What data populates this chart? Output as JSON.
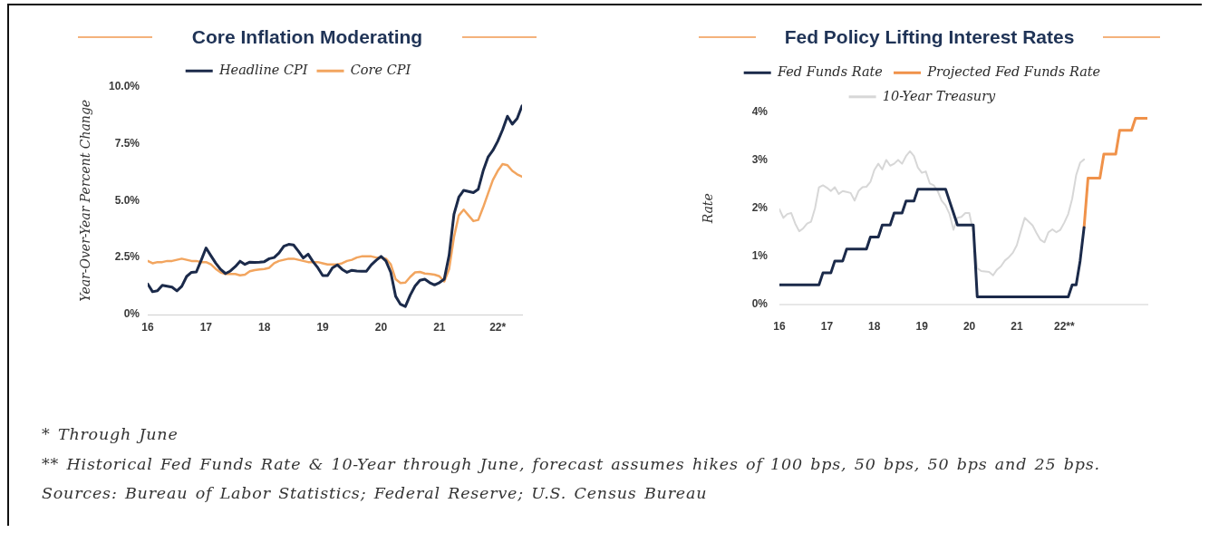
{
  "chart_data": [
    {
      "type": "line",
      "title": "Core Inflation Moderating",
      "ylabel": "Year-Over-Year Percent Change",
      "legend": "top",
      "x": [
        "2016-01",
        "2016-02",
        "2016-03",
        "2016-04",
        "2016-05",
        "2016-06",
        "2016-07",
        "2016-08",
        "2016-09",
        "2016-10",
        "2016-11",
        "2016-12",
        "2017-01",
        "2017-02",
        "2017-03",
        "2017-04",
        "2017-05",
        "2017-06",
        "2017-07",
        "2017-08",
        "2017-09",
        "2017-10",
        "2017-11",
        "2017-12",
        "2018-01",
        "2018-02",
        "2018-03",
        "2018-04",
        "2018-05",
        "2018-06",
        "2018-07",
        "2018-08",
        "2018-09",
        "2018-10",
        "2018-11",
        "2018-12",
        "2019-01",
        "2019-02",
        "2019-03",
        "2019-04",
        "2019-05",
        "2019-06",
        "2019-07",
        "2019-08",
        "2019-09",
        "2019-10",
        "2019-11",
        "2019-12",
        "2020-01",
        "2020-02",
        "2020-03",
        "2020-04",
        "2020-05",
        "2020-06",
        "2020-07",
        "2020-08",
        "2020-09",
        "2020-10",
        "2020-11",
        "2020-12",
        "2021-01",
        "2021-02",
        "2021-03",
        "2021-04",
        "2021-05",
        "2021-06",
        "2021-07",
        "2021-08",
        "2021-09",
        "2021-10",
        "2021-11",
        "2021-12",
        "2022-01",
        "2022-02",
        "2022-03",
        "2022-04",
        "2022-05",
        "2022-06"
      ],
      "series": [
        {
          "name": "Headline CPI",
          "color": "#1b2a4a",
          "values": [
            1.34,
            1.0,
            1.04,
            1.28,
            1.24,
            1.2,
            1.04,
            1.24,
            1.67,
            1.85,
            1.87,
            2.38,
            2.92,
            2.58,
            2.25,
            1.98,
            1.8,
            1.91,
            2.1,
            2.34,
            2.2,
            2.3,
            2.29,
            2.3,
            2.32,
            2.45,
            2.5,
            2.7,
            3.0,
            3.08,
            3.05,
            2.78,
            2.48,
            2.65,
            2.32,
            2.05,
            1.71,
            1.71,
            2.05,
            2.18,
            1.98,
            1.85,
            1.94,
            1.91,
            1.9,
            1.9,
            2.18,
            2.38,
            2.55,
            2.35,
            1.85,
            0.8,
            0.45,
            0.35,
            0.85,
            1.25,
            1.5,
            1.55,
            1.4,
            1.3,
            1.4,
            1.55,
            2.6,
            4.4,
            5.15,
            5.45,
            5.4,
            5.35,
            5.5,
            6.3,
            6.9,
            7.2,
            7.6,
            8.1,
            8.7,
            8.35,
            8.6,
            9.15
          ]
        },
        {
          "name": "Core CPI",
          "color": "#f2a55f",
          "values": [
            2.35,
            2.25,
            2.3,
            2.3,
            2.35,
            2.35,
            2.4,
            2.45,
            2.4,
            2.35,
            2.35,
            2.3,
            2.3,
            2.2,
            2.0,
            1.85,
            1.78,
            1.78,
            1.78,
            1.72,
            1.75,
            1.9,
            1.95,
            1.98,
            2.0,
            2.05,
            2.25,
            2.35,
            2.4,
            2.45,
            2.45,
            2.4,
            2.35,
            2.3,
            2.3,
            2.3,
            2.25,
            2.2,
            2.2,
            2.2,
            2.25,
            2.35,
            2.4,
            2.5,
            2.55,
            2.55,
            2.55,
            2.5,
            2.5,
            2.45,
            2.2,
            1.55,
            1.38,
            1.4,
            1.65,
            1.85,
            1.87,
            1.8,
            1.78,
            1.75,
            1.68,
            1.45,
            2.0,
            3.4,
            4.35,
            4.6,
            4.35,
            4.1,
            4.15,
            4.7,
            5.3,
            5.9,
            6.3,
            6.6,
            6.55,
            6.3,
            6.15,
            6.05
          ]
        }
      ],
      "xlim": [
        "2016-01",
        "2022-06"
      ],
      "xticks": [
        {
          "value": "2016-01",
          "label": "16"
        },
        {
          "value": "2017-01",
          "label": "17"
        },
        {
          "value": "2018-01",
          "label": "18"
        },
        {
          "value": "2019-01",
          "label": "19"
        },
        {
          "value": "2020-01",
          "label": "20"
        },
        {
          "value": "2021-01",
          "label": "21"
        },
        {
          "value": "2022-01",
          "label": "22*"
        }
      ],
      "ylim": [
        0,
        10
      ],
      "yticks": [
        {
          "value": 0,
          "label": "0%"
        },
        {
          "value": 2.5,
          "label": "2.5%"
        },
        {
          "value": 5,
          "label": "5.0%"
        },
        {
          "value": 7.5,
          "label": "7.5%"
        },
        {
          "value": 10,
          "label": "10.0%"
        }
      ],
      "annotations": [
        "* Through June"
      ]
    },
    {
      "type": "line",
      "title": "Fed Policy Lifting Interest Rates",
      "ylabel": "Rate",
      "legend": "top",
      "x": [
        "2016-01",
        "2016-02",
        "2016-03",
        "2016-04",
        "2016-05",
        "2016-06",
        "2016-07",
        "2016-08",
        "2016-09",
        "2016-10",
        "2016-11",
        "2016-12",
        "2017-01",
        "2017-02",
        "2017-03",
        "2017-04",
        "2017-05",
        "2017-06",
        "2017-07",
        "2017-08",
        "2017-09",
        "2017-10",
        "2017-11",
        "2017-12",
        "2018-01",
        "2018-02",
        "2018-03",
        "2018-04",
        "2018-05",
        "2018-06",
        "2018-07",
        "2018-08",
        "2018-09",
        "2018-10",
        "2018-11",
        "2018-12",
        "2019-01",
        "2019-02",
        "2019-03",
        "2019-04",
        "2019-05",
        "2019-06",
        "2019-07",
        "2019-08",
        "2019-09",
        "2019-10",
        "2019-11",
        "2019-12",
        "2020-01",
        "2020-02",
        "2020-03",
        "2020-04",
        "2020-05",
        "2020-06",
        "2020-07",
        "2020-08",
        "2020-09",
        "2020-10",
        "2020-11",
        "2020-12",
        "2021-01",
        "2021-02",
        "2021-03",
        "2021-04",
        "2021-05",
        "2021-06",
        "2021-07",
        "2021-08",
        "2021-09",
        "2021-10",
        "2021-11",
        "2021-12",
        "2022-01",
        "2022-02",
        "2022-03",
        "2022-04",
        "2022-05",
        "2022-06"
      ],
      "series": [
        {
          "name": "Fed Funds Rate",
          "color": "#1b2a4a",
          "values": [
            0.4,
            0.4,
            0.4,
            0.4,
            0.4,
            0.4,
            0.4,
            0.4,
            0.4,
            0.4,
            0.4,
            0.65,
            0.65,
            0.65,
            0.9,
            0.9,
            0.9,
            1.15,
            1.15,
            1.15,
            1.15,
            1.15,
            1.15,
            1.4,
            1.4,
            1.4,
            1.65,
            1.65,
            1.65,
            1.9,
            1.9,
            1.9,
            2.15,
            2.15,
            2.15,
            2.4,
            2.4,
            2.4,
            2.4,
            2.4,
            2.4,
            2.4,
            2.4,
            2.15,
            1.9,
            1.65,
            1.65,
            1.65,
            1.65,
            1.65,
            0.15,
            0.15,
            0.15,
            0.15,
            0.15,
            0.15,
            0.15,
            0.15,
            0.15,
            0.15,
            0.15,
            0.15,
            0.15,
            0.15,
            0.15,
            0.15,
            0.15,
            0.15,
            0.15,
            0.15,
            0.15,
            0.15,
            0.15,
            0.15,
            0.4,
            0.4,
            0.9,
            1.6
          ]
        },
        {
          "name": "Projected Fed Funds Rate",
          "color": "#f0924a",
          "x": [
            "2022-06",
            "2022-07",
            "2022-08",
            "2022-09",
            "2022-10",
            "2022-11",
            "2022-12",
            "2023-01",
            "2023-02",
            "2023-03",
            "2023-04",
            "2023-05",
            "2023-06",
            "2023-07",
            "2023-08",
            "2023-09",
            "2023-10"
          ],
          "values": [
            1.6,
            2.63,
            2.63,
            2.63,
            2.63,
            3.13,
            3.13,
            3.13,
            3.13,
            3.63,
            3.63,
            3.63,
            3.63,
            3.88,
            3.88,
            3.88,
            3.88
          ]
        },
        {
          "name": "10-Year Treasury",
          "color": "#d7d7d7",
          "values": [
            1.98,
            1.8,
            1.88,
            1.9,
            1.68,
            1.52,
            1.58,
            1.68,
            1.72,
            2.0,
            2.44,
            2.48,
            2.43,
            2.36,
            2.44,
            2.3,
            2.36,
            2.34,
            2.32,
            2.16,
            2.36,
            2.44,
            2.45,
            2.55,
            2.8,
            2.93,
            2.81,
            3.01,
            2.89,
            2.93,
            3.01,
            2.93,
            3.09,
            3.19,
            3.09,
            2.85,
            2.74,
            2.77,
            2.52,
            2.48,
            2.36,
            2.16,
            2.06,
            1.88,
            1.55,
            1.8,
            1.82,
            1.9,
            1.9,
            1.5,
            0.75,
            0.69,
            0.68,
            0.67,
            0.6,
            0.72,
            0.79,
            0.91,
            0.98,
            1.07,
            1.23,
            1.52,
            1.8,
            1.72,
            1.64,
            1.48,
            1.34,
            1.29,
            1.5,
            1.56,
            1.5,
            1.55,
            1.7,
            1.88,
            2.2,
            2.69,
            2.95,
            3.02
          ]
        }
      ],
      "xlim": [
        "2016-01",
        "2023-10"
      ],
      "xticks": [
        {
          "value": "2016-01",
          "label": "16"
        },
        {
          "value": "2017-01",
          "label": "17"
        },
        {
          "value": "2018-01",
          "label": "18"
        },
        {
          "value": "2019-01",
          "label": "19"
        },
        {
          "value": "2020-01",
          "label": "20"
        },
        {
          "value": "2021-01",
          "label": "21"
        },
        {
          "value": "2022-01",
          "label": "22**"
        }
      ],
      "ylim": [
        0,
        4
      ],
      "yticks": [
        {
          "value": 0,
          "label": "0%"
        },
        {
          "value": 1,
          "label": "1%"
        },
        {
          "value": 2,
          "label": "2%"
        },
        {
          "value": 3,
          "label": "3%"
        },
        {
          "value": 4,
          "label": "4%"
        }
      ],
      "annotations": [
        "** Historical Fed Funds Rate & 10-Year through June, forecast assumes hikes of 100 bps, 50 bps, 50 bps and 25 bps.",
        "Sources: Bureau of Labor Statistics; Federal Reserve; U.S. Census Bureau"
      ]
    }
  ]
}
